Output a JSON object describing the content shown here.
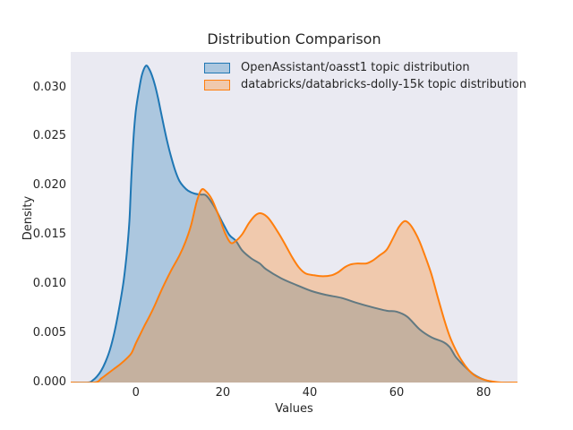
{
  "chart_data": {
    "type": "area",
    "subtype": "kde-density",
    "title": "Distribution Comparison",
    "xlabel": "Values",
    "ylabel": "Density",
    "xlim": [
      -15,
      87.8
    ],
    "ylim": [
      0,
      0.0336
    ],
    "grid": false,
    "plot_background": "#eaeaf2",
    "figure_background": "#ffffff",
    "text_color": "#262626",
    "legend_position": "upper center",
    "xticks": {
      "values": [
        0,
        20,
        40,
        60,
        80
      ],
      "labels": [
        "0",
        "20",
        "40",
        "60",
        "80"
      ]
    },
    "yticks": {
      "values": [
        0,
        0.005,
        0.01,
        0.015,
        0.02,
        0.025,
        0.03
      ],
      "labels": [
        "0.000",
        "0.005",
        "0.010",
        "0.015",
        "0.020",
        "0.025",
        "0.030"
      ]
    },
    "series": [
      {
        "name": "OpenAssistant/oasst1 topic distribution",
        "line_color": "#1f77b4",
        "fill_color": "rgba(31,119,180,0.30)",
        "peak": {
          "x": 2.3,
          "density": 0.0322
        },
        "points": [
          [
            -15,
            0
          ],
          [
            -11,
            0
          ],
          [
            -10,
            0.0002
          ],
          [
            -9,
            0.0006
          ],
          [
            -8,
            0.0012
          ],
          [
            -7,
            0.0021
          ],
          [
            -6,
            0.0033
          ],
          [
            -5,
            0.005
          ],
          [
            -4,
            0.0072
          ],
          [
            -3,
            0.0098
          ],
          [
            -2.5,
            0.0115
          ],
          [
            -2,
            0.0136
          ],
          [
            -1.5,
            0.0164
          ],
          [
            -1.25,
            0.0188
          ],
          [
            -1,
            0.0213
          ],
          [
            -0.5,
            0.0252
          ],
          [
            0,
            0.0277
          ],
          [
            0.7,
            0.0297
          ],
          [
            1.4,
            0.0313
          ],
          [
            2.3,
            0.0322
          ],
          [
            3,
            0.0319
          ],
          [
            3.7,
            0.0312
          ],
          [
            4.4,
            0.0302
          ],
          [
            5.1,
            0.0289
          ],
          [
            5.8,
            0.0274
          ],
          [
            6.5,
            0.0259
          ],
          [
            7.2,
            0.0245
          ],
          [
            8,
            0.0231
          ],
          [
            9,
            0.0216
          ],
          [
            10,
            0.0205
          ],
          [
            11,
            0.0199
          ],
          [
            12,
            0.0195
          ],
          [
            13.5,
            0.0192
          ],
          [
            15,
            0.0191
          ],
          [
            16.2,
            0.019
          ],
          [
            18,
            0.0179
          ],
          [
            20,
            0.0162
          ],
          [
            21.5,
            0.015
          ],
          [
            23,
            0.0144
          ],
          [
            24.5,
            0.0134
          ],
          [
            26.6,
            0.0126
          ],
          [
            28.5,
            0.0121
          ],
          [
            30,
            0.0115
          ],
          [
            33.4,
            0.0106
          ],
          [
            37,
            0.0099
          ],
          [
            40.4,
            0.0093
          ],
          [
            43.8,
            0.0089
          ],
          [
            47.3,
            0.0086
          ],
          [
            50.8,
            0.0081
          ],
          [
            54,
            0.0077
          ],
          [
            57.7,
            0.0073
          ],
          [
            60,
            0.0072
          ],
          [
            62.4,
            0.0067
          ],
          [
            65.3,
            0.0054
          ],
          [
            68,
            0.0046
          ],
          [
            70.8,
            0.0041
          ],
          [
            72.2,
            0.0036
          ],
          [
            73.6,
            0.0026
          ],
          [
            75.5,
            0.0017
          ],
          [
            77.5,
            0.0009
          ],
          [
            79.5,
            0.0004
          ],
          [
            81.5,
            0.0001
          ],
          [
            83,
            0
          ],
          [
            87.8,
            0
          ]
        ]
      },
      {
        "name": "databricks/databricks-dolly-15k topic distribution",
        "line_color": "#ff7f0e",
        "fill_color": "rgba(255,127,14,0.30)",
        "peak": {
          "x": 15.1,
          "density": 0.0196
        },
        "points": [
          [
            -15,
            0
          ],
          [
            -9.5,
            0
          ],
          [
            -8,
            0.0004
          ],
          [
            -6.5,
            0.0009
          ],
          [
            -5,
            0.0014
          ],
          [
            -3.5,
            0.0019
          ],
          [
            -2,
            0.0025
          ],
          [
            -1,
            0.003
          ],
          [
            0,
            0.004
          ],
          [
            1,
            0.0049
          ],
          [
            2,
            0.0058
          ],
          [
            3.2,
            0.0068
          ],
          [
            4.4,
            0.0079
          ],
          [
            6,
            0.0095
          ],
          [
            8,
            0.0113
          ],
          [
            10,
            0.0129
          ],
          [
            11.4,
            0.0143
          ],
          [
            12.7,
            0.016
          ],
          [
            14,
            0.0184
          ],
          [
            15.1,
            0.0196
          ],
          [
            16.2,
            0.0194
          ],
          [
            17.5,
            0.0186
          ],
          [
            19,
            0.017
          ],
          [
            20.5,
            0.0152
          ],
          [
            21.8,
            0.0142
          ],
          [
            23,
            0.0144
          ],
          [
            24.5,
            0.0151
          ],
          [
            26,
            0.0162
          ],
          [
            27.5,
            0.017
          ],
          [
            28.8,
            0.0172
          ],
          [
            30.5,
            0.0167
          ],
          [
            32.8,
            0.0152
          ],
          [
            34.5,
            0.0139
          ],
          [
            36,
            0.0127
          ],
          [
            37.5,
            0.0117
          ],
          [
            39,
            0.0111
          ],
          [
            41,
            0.0109
          ],
          [
            43,
            0.0108
          ],
          [
            45,
            0.0109
          ],
          [
            46.5,
            0.0112
          ],
          [
            48,
            0.0117
          ],
          [
            49.4,
            0.012
          ],
          [
            51,
            0.0121
          ],
          [
            53,
            0.0121
          ],
          [
            54.5,
            0.0124
          ],
          [
            56,
            0.0129
          ],
          [
            57.7,
            0.0135
          ],
          [
            59.2,
            0.0147
          ],
          [
            60.5,
            0.0158
          ],
          [
            61.8,
            0.0164
          ],
          [
            63,
            0.0161
          ],
          [
            64.2,
            0.0153
          ],
          [
            65.3,
            0.0143
          ],
          [
            66.5,
            0.0129
          ],
          [
            68,
            0.011
          ],
          [
            69.5,
            0.0086
          ],
          [
            71,
            0.0063
          ],
          [
            72.2,
            0.0047
          ],
          [
            73.5,
            0.0034
          ],
          [
            75,
            0.0022
          ],
          [
            76.5,
            0.0013
          ],
          [
            78,
            0.0007
          ],
          [
            80,
            0.0003
          ],
          [
            82,
            0.0001
          ],
          [
            84,
            0
          ],
          [
            87.8,
            0
          ]
        ]
      }
    ]
  }
}
